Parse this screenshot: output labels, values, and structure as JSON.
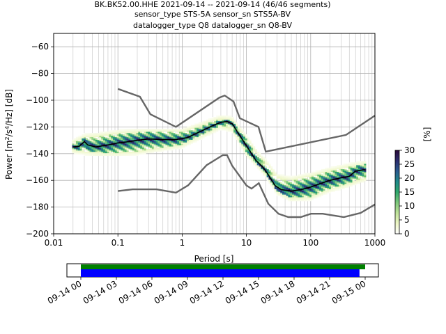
{
  "title_lines": [
    "BK.BK52.00.HHE   2021-09-14 -- 2021-09-14  (46/46 segments)",
    "sensor_type STS-5A sensor_sn STS5A-BV",
    "datalogger_type Q8 datalogger_sn Q8-BV"
  ],
  "chart_data": {
    "type": "heatmap",
    "xlabel": "Period [s]",
    "ylabel_parts": [
      "Power [m",
      "2",
      "/s",
      "4",
      "/Hz] [dB]"
    ],
    "x_scale": "log",
    "xlim": [
      0.01,
      1000
    ],
    "ylim": [
      -200,
      -50
    ],
    "grid": true,
    "x_ticks": [
      {
        "v": 0.01,
        "label": "0.01"
      },
      {
        "v": 0.1,
        "label": "0.1"
      },
      {
        "v": 1,
        "label": "1"
      },
      {
        "v": 10,
        "label": "10"
      },
      {
        "v": 100,
        "label": "100"
      },
      {
        "v": 1000,
        "label": "1000"
      }
    ],
    "y_ticks": [
      {
        "v": -200,
        "label": "−200"
      },
      {
        "v": -180,
        "label": "−180"
      },
      {
        "v": -160,
        "label": "−160"
      },
      {
        "v": -140,
        "label": "−140"
      },
      {
        "v": -120,
        "label": "−120"
      },
      {
        "v": -100,
        "label": "−100"
      },
      {
        "v": -80,
        "label": "−80"
      },
      {
        "v": -60,
        "label": "−60"
      }
    ],
    "nhnm": [
      [
        0.1,
        -91.5
      ],
      [
        0.22,
        -97.4
      ],
      [
        0.32,
        -110.5
      ],
      [
        0.8,
        -120
      ],
      [
        3.8,
        -98
      ],
      [
        4.6,
        -96.5
      ],
      [
        6.3,
        -101
      ],
      [
        7.9,
        -113.5
      ],
      [
        15.4,
        -120
      ],
      [
        20,
        -138.5
      ],
      [
        354.8,
        -126
      ],
      [
        1000,
        -111.5
      ]
    ],
    "nlnm": [
      [
        0.1,
        -168
      ],
      [
        0.17,
        -166.7
      ],
      [
        0.4,
        -166.7
      ],
      [
        0.8,
        -169.2
      ],
      [
        1.24,
        -163.7
      ],
      [
        2.4,
        -148.6
      ],
      [
        4.3,
        -141.1
      ],
      [
        5,
        -141.1
      ],
      [
        6,
        -149
      ],
      [
        10,
        -163.8
      ],
      [
        12,
        -166.2
      ],
      [
        15.6,
        -162.1
      ],
      [
        21.9,
        -177.5
      ],
      [
        31.6,
        -185
      ],
      [
        45,
        -187.5
      ],
      [
        70,
        -187.5
      ],
      [
        101,
        -185
      ],
      [
        154,
        -185
      ],
      [
        328,
        -187.5
      ],
      [
        600,
        -184.4
      ],
      [
        1000,
        -178
      ]
    ],
    "median": [
      [
        0.02,
        -135
      ],
      [
        0.025,
        -134.5
      ],
      [
        0.03,
        -131
      ],
      [
        0.034,
        -133.5
      ],
      [
        0.045,
        -135
      ],
      [
        0.06,
        -134
      ],
      [
        0.08,
        -133
      ],
      [
        0.1,
        -132
      ],
      [
        0.15,
        -131
      ],
      [
        0.2,
        -130
      ],
      [
        0.3,
        -129
      ],
      [
        0.5,
        -129.5
      ],
      [
        0.8,
        -129.5
      ],
      [
        1.2,
        -128
      ],
      [
        2,
        -123
      ],
      [
        3,
        -119
      ],
      [
        4,
        -116.5
      ],
      [
        5,
        -116
      ],
      [
        6,
        -117.5
      ],
      [
        8,
        -127
      ],
      [
        10,
        -134
      ],
      [
        14,
        -145
      ],
      [
        18,
        -150
      ],
      [
        22,
        -156
      ],
      [
        28,
        -164
      ],
      [
        35,
        -167
      ],
      [
        50,
        -168
      ],
      [
        70,
        -167
      ],
      [
        100,
        -165
      ],
      [
        150,
        -162
      ],
      [
        200,
        -160
      ],
      [
        300,
        -158
      ],
      [
        400,
        -157
      ],
      [
        500,
        -153
      ],
      [
        700,
        -152
      ]
    ],
    "density_band": [
      [
        0.02,
        -137,
        -132
      ],
      [
        0.03,
        -138,
        -128
      ],
      [
        0.05,
        -139,
        -127
      ],
      [
        0.1,
        -139,
        -125
      ],
      [
        0.2,
        -138,
        -124
      ],
      [
        0.5,
        -135,
        -124
      ],
      [
        1,
        -133,
        -124
      ],
      [
        2,
        -126,
        -119
      ],
      [
        4,
        -119,
        -114
      ],
      [
        6,
        -121,
        -115
      ],
      [
        10,
        -139,
        -129
      ],
      [
        15,
        -148,
        -141
      ],
      [
        20,
        -155,
        -147
      ],
      [
        30,
        -168,
        -158
      ],
      [
        50,
        -173,
        -160
      ],
      [
        100,
        -172,
        -157
      ],
      [
        200,
        -166,
        -153
      ],
      [
        400,
        -162,
        -150
      ],
      [
        700,
        -158,
        -148
      ]
    ],
    "colorbar": {
      "label": "[%]",
      "min": 0,
      "max": 30,
      "ticks": [
        {
          "v": 0,
          "label": "0"
        },
        {
          "v": 5,
          "label": "5"
        },
        {
          "v": 10,
          "label": "10"
        },
        {
          "v": 15,
          "label": "15"
        },
        {
          "v": 20,
          "label": "20"
        },
        {
          "v": 25,
          "label": "25"
        },
        {
          "v": 30,
          "label": "30"
        }
      ],
      "stops": [
        "#ffffff",
        "#eef7c5",
        "#bfe39a",
        "#7cc77a",
        "#2fa86c",
        "#1f8a8a",
        "#2a5b8f",
        "#2b2d6e",
        "#2a0a3a"
      ]
    }
  },
  "coverage": {
    "ticks": [
      "09-14 00",
      "09-14 03",
      "09-14 06",
      "09-14 09",
      "09-14 12",
      "09-14 15",
      "09-14 18",
      "09-14 21",
      "09-15 00"
    ],
    "data_color": "#0000ff",
    "gap_color": "#008000",
    "data_fraction": [
      0.0,
      0.98
    ],
    "used_fraction": [
      0.0,
      1.0
    ]
  }
}
